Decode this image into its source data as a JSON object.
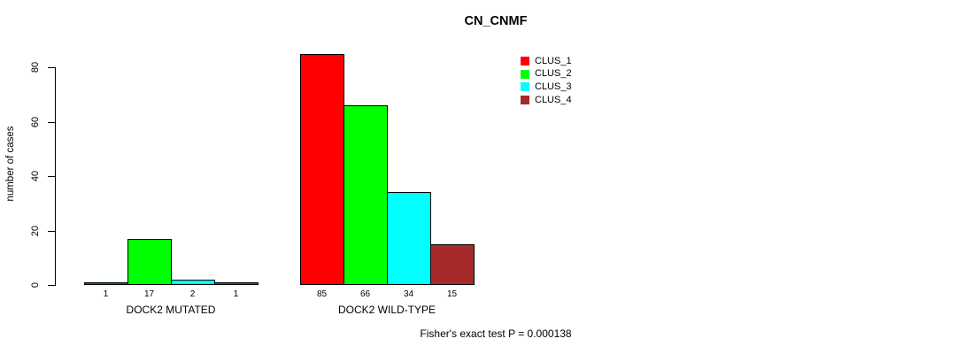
{
  "chart_data": {
    "type": "bar",
    "title": "CN_CNMF",
    "ylabel": "number of cases",
    "xlabel": "",
    "ylim": [
      0,
      80
    ],
    "yticks": [
      0,
      20,
      40,
      60,
      80
    ],
    "grid": false,
    "legend_position": "top-right",
    "categories": [
      "DOCK2 MUTATED",
      "DOCK2 WILD-TYPE"
    ],
    "series": [
      {
        "name": "CLUS_1",
        "color": "#FF0000",
        "values": [
          1,
          85
        ]
      },
      {
        "name": "CLUS_2",
        "color": "#00FF00",
        "values": [
          17,
          66
        ]
      },
      {
        "name": "CLUS_3",
        "color": "#00FFFF",
        "values": [
          2,
          34
        ]
      },
      {
        "name": "CLUS_4",
        "color": "#A52A2A",
        "values": [
          1,
          15
        ]
      }
    ],
    "bar_value_labels": [
      [
        "1",
        "17",
        "2",
        "1"
      ],
      [
        "85",
        "66",
        "34",
        "15"
      ]
    ],
    "annotation": "Fisher's exact test P = 0.000138"
  }
}
